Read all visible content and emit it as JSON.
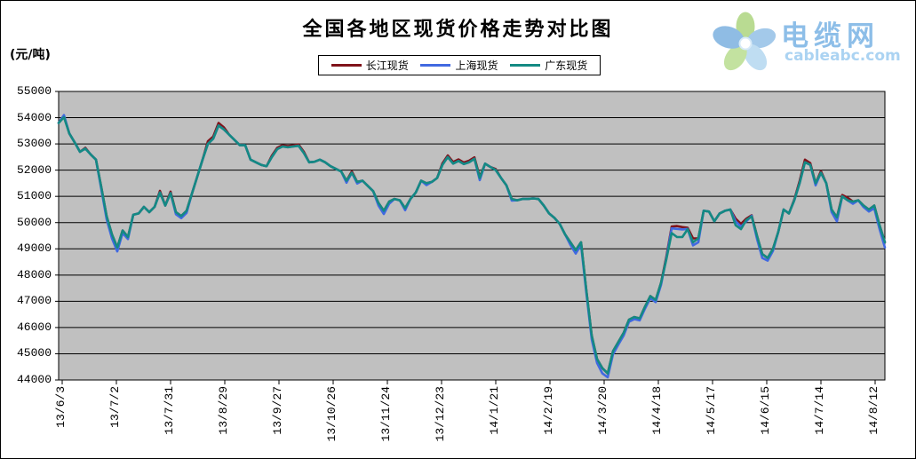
{
  "header": {
    "title": "全国各地区现货价格走势对比图"
  },
  "y_axis_unit": "(元/吨)",
  "logo": {
    "brand": "电缆网",
    "domain": "cableabc.com",
    "brand_color": "#8DBEE8",
    "domain_color": "#ABD3F2"
  },
  "chart_data": {
    "type": "line",
    "title": "全国各地区现货价格走势对比图",
    "ylabel": "(元/吨)",
    "ylim": [
      44000,
      55000
    ],
    "y_tick_step": 1000,
    "grid": "horizontal",
    "legend_position": "top-center",
    "plot_bg": "#C0C0C0",
    "grid_color": "#000000",
    "y_ticks": [
      "55000",
      "54000",
      "53000",
      "52000",
      "51000",
      "50000",
      "49000",
      "48000",
      "47000",
      "46000",
      "45000",
      "44000"
    ],
    "x_tick_labels": [
      "13/6/3",
      "13/7/2",
      "13/7/31",
      "13/8/29",
      "13/9/27",
      "13/10/26",
      "13/11/24",
      "13/12/23",
      "14/1/21",
      "14/2/19",
      "14/3/20",
      "14/4/18",
      "14/5/17",
      "14/6/15",
      "14/7/14",
      "14/8/12"
    ],
    "series": [
      {
        "key": "changjiang",
        "name": "长江现货",
        "color": "#80131A",
        "values": [
          53800,
          54060,
          53400,
          53060,
          52700,
          52850,
          52600,
          52400,
          51350,
          50250,
          49550,
          49050,
          49700,
          49450,
          50300,
          50350,
          50600,
          50400,
          50600,
          51210,
          50650,
          51180,
          50400,
          50250,
          50450,
          51100,
          51750,
          52400,
          53100,
          53280,
          53800,
          53630,
          53350,
          53150,
          52950,
          52950,
          52400,
          52300,
          52200,
          52150,
          52550,
          52850,
          52950,
          52920,
          52950,
          52980,
          52700,
          52300,
          52320,
          52400,
          52300,
          52150,
          52050,
          51950,
          51600,
          51950,
          51550,
          51600,
          51400,
          51200,
          50750,
          50450,
          50800,
          50900,
          50850,
          50550,
          50900,
          51150,
          51600,
          51500,
          51550,
          51700,
          52260,
          52560,
          52310,
          52410,
          52290,
          52360,
          52490,
          51740,
          52250,
          52120,
          52040,
          51700,
          51420,
          50900,
          50850,
          50900,
          50900,
          50920,
          50900,
          50650,
          50350,
          50180,
          49950,
          49550,
          49250,
          48950,
          49250,
          47400,
          45700,
          44800,
          44450,
          44250,
          45100,
          45450,
          45800,
          46300,
          46400,
          46350,
          46800,
          47200,
          47050,
          47700,
          48700,
          49850,
          49870,
          49830,
          49800,
          49400,
          49400,
          50450,
          50420,
          50050,
          50350,
          50450,
          50500,
          50150,
          49950,
          50150,
          50280,
          49500,
          48800,
          48650,
          49000,
          49650,
          50500,
          50350,
          50880,
          51580,
          52400,
          52270,
          51500,
          51960,
          51500,
          50500,
          50200,
          51050,
          50950,
          50800,
          50850,
          50650,
          50500,
          50650,
          49900,
          49250
        ]
      },
      {
        "key": "shanghai",
        "name": "上海现货",
        "color": "#4169E1",
        "values": [
          53800,
          54100,
          53400,
          53060,
          52700,
          52820,
          52600,
          52400,
          51270,
          50130,
          49400,
          48900,
          49600,
          49370,
          50300,
          50350,
          50600,
          50400,
          50600,
          51150,
          50650,
          51120,
          50320,
          50170,
          50370,
          51100,
          51750,
          52400,
          53000,
          53200,
          53700,
          53550,
          53350,
          53150,
          52950,
          52950,
          52400,
          52300,
          52200,
          52150,
          52500,
          52800,
          52900,
          52870,
          52900,
          52930,
          52650,
          52300,
          52320,
          52400,
          52300,
          52150,
          52050,
          51950,
          51520,
          51900,
          51490,
          51600,
          51400,
          51200,
          50650,
          50330,
          50720,
          50900,
          50850,
          50470,
          50900,
          51150,
          51600,
          51430,
          51550,
          51700,
          52200,
          52500,
          52250,
          52350,
          52230,
          52300,
          52430,
          51620,
          52250,
          52120,
          52000,
          51700,
          51420,
          50840,
          50850,
          50900,
          50900,
          50920,
          50900,
          50650,
          50350,
          50180,
          49950,
          49550,
          49150,
          48820,
          49150,
          47300,
          45550,
          44650,
          44250,
          44100,
          44980,
          45350,
          45700,
          46220,
          46320,
          46270,
          46720,
          47120,
          46970,
          47620,
          48640,
          49780,
          49760,
          49740,
          49760,
          49130,
          49250,
          50450,
          50420,
          50050,
          50350,
          50450,
          50500,
          50050,
          49850,
          50050,
          50260,
          49380,
          48650,
          48550,
          48920,
          49650,
          50500,
          50350,
          50850,
          51500,
          52300,
          52200,
          51420,
          51900,
          51500,
          50400,
          50050,
          51000,
          50850,
          50720,
          50850,
          50590,
          50420,
          50550,
          49750,
          49050
        ]
      },
      {
        "key": "guangdong",
        "name": "广东现货",
        "color": "#148A83",
        "values": [
          53800,
          54020,
          53400,
          53060,
          52700,
          52820,
          52600,
          52400,
          51350,
          50250,
          49550,
          49050,
          49700,
          49450,
          50300,
          50350,
          50600,
          50400,
          50600,
          51150,
          50650,
          51120,
          50400,
          50250,
          50450,
          51100,
          51750,
          52400,
          53000,
          53200,
          53700,
          53550,
          53350,
          53150,
          52950,
          52950,
          52400,
          52300,
          52200,
          52150,
          52500,
          52800,
          52900,
          52870,
          52900,
          52930,
          52650,
          52300,
          52320,
          52400,
          52300,
          52150,
          52050,
          51950,
          51600,
          51900,
          51550,
          51600,
          51400,
          51200,
          50750,
          50450,
          50800,
          50900,
          50850,
          50550,
          50900,
          51150,
          51600,
          51500,
          51550,
          51700,
          52200,
          52500,
          52250,
          52350,
          52230,
          52300,
          52430,
          51700,
          52250,
          52120,
          52000,
          51700,
          51420,
          50900,
          50850,
          50900,
          50900,
          50920,
          50900,
          50650,
          50350,
          50180,
          49950,
          49550,
          49250,
          48950,
          49250,
          47400,
          45700,
          44800,
          44450,
          44250,
          45100,
          45450,
          45800,
          46300,
          46400,
          46350,
          46800,
          47200,
          47050,
          47700,
          48600,
          49600,
          49450,
          49450,
          49750,
          49250,
          49400,
          50450,
          50420,
          50050,
          50350,
          50450,
          50500,
          49900,
          49750,
          50100,
          50230,
          49500,
          48800,
          48650,
          49000,
          49650,
          50500,
          50350,
          50850,
          51500,
          52300,
          52200,
          51500,
          51900,
          51500,
          50500,
          50200,
          51000,
          50850,
          50800,
          50850,
          50650,
          50500,
          50650,
          49900,
          49250
        ]
      }
    ]
  }
}
